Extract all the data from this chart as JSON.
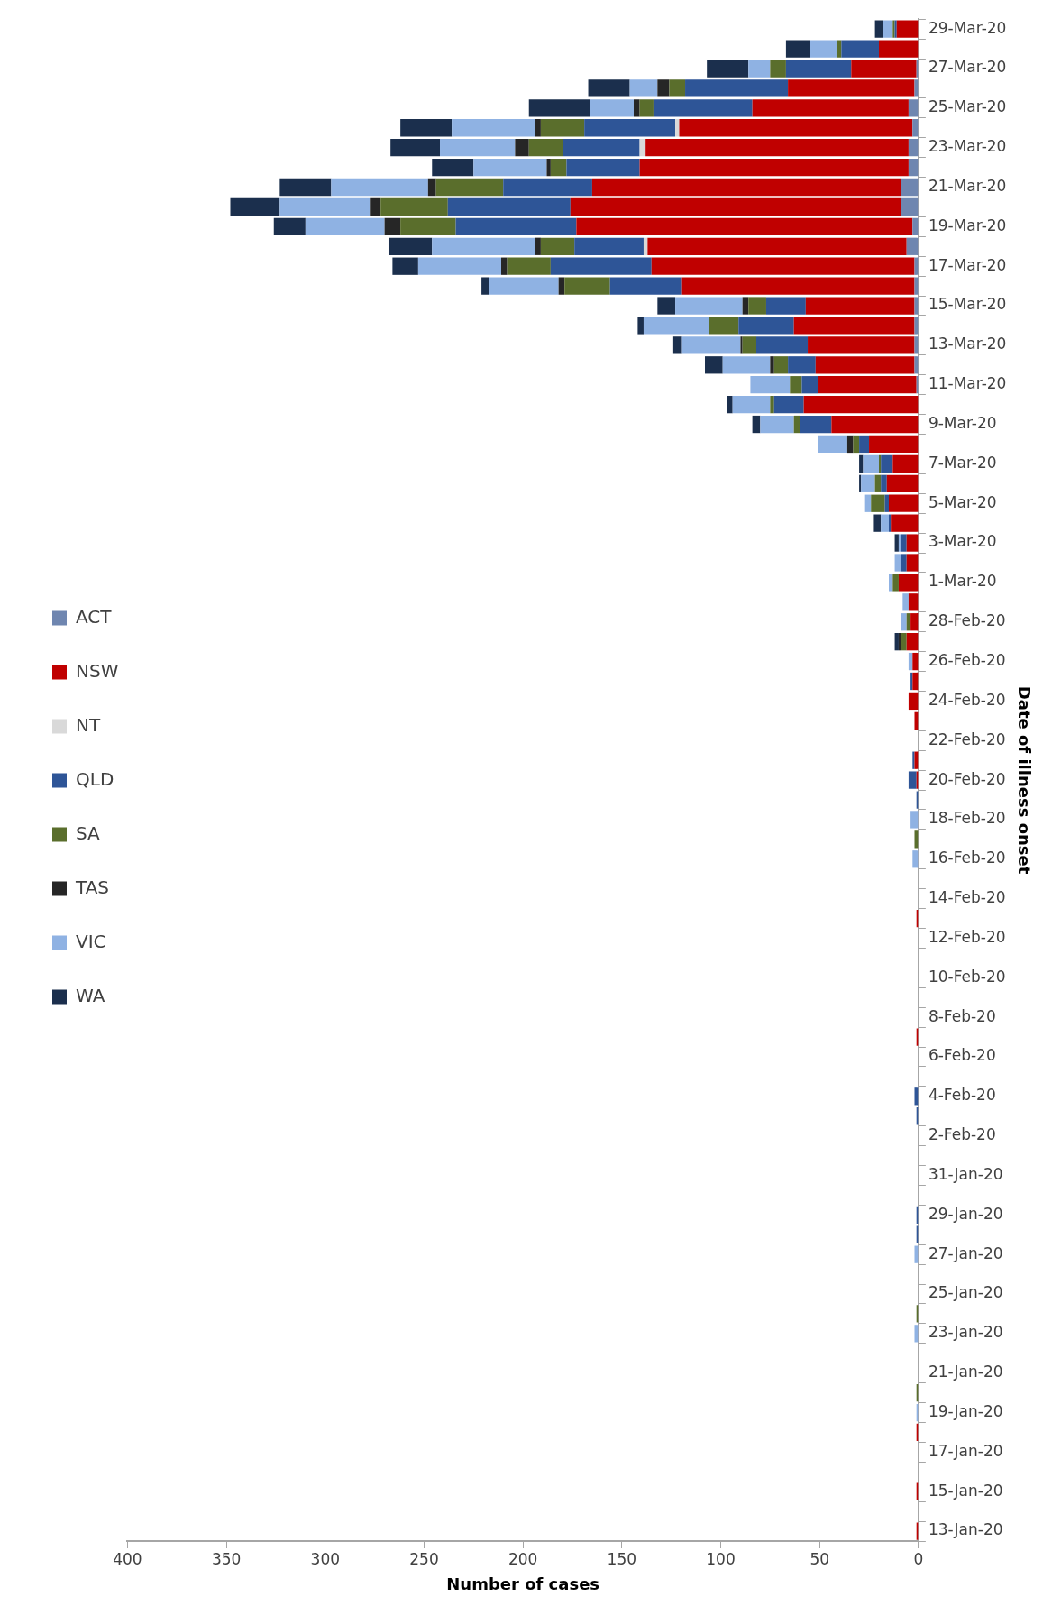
{
  "chart_data": {
    "type": "bar",
    "orientation": "horizontal",
    "stacked": true,
    "xlabel": "Number of cases",
    "ylabel": "Date of illness onset",
    "legend": "left",
    "grid": false,
    "xlim": [
      400,
      0
    ],
    "xticks": [
      0,
      50,
      100,
      150,
      200,
      250,
      300,
      350,
      400
    ],
    "categories": [
      "29-Mar-20",
      null,
      "27-Mar-20",
      null,
      "25-Mar-20",
      null,
      "23-Mar-20",
      null,
      "21-Mar-20",
      null,
      "19-Mar-20",
      null,
      "17-Mar-20",
      null,
      "15-Mar-20",
      null,
      "13-Mar-20",
      null,
      "11-Mar-20",
      null,
      "9-Mar-20",
      null,
      "7-Mar-20",
      null,
      "5-Mar-20",
      null,
      "3-Mar-20",
      null,
      "1-Mar-20",
      null,
      "28-Feb-20",
      null,
      "26-Feb-20",
      null,
      "24-Feb-20",
      null,
      "22-Feb-20",
      null,
      "20-Feb-20",
      null,
      "18-Feb-20",
      null,
      "16-Feb-20",
      null,
      "14-Feb-20",
      null,
      "12-Feb-20",
      null,
      "10-Feb-20",
      null,
      "8-Feb-20",
      null,
      "6-Feb-20",
      null,
      "4-Feb-20",
      null,
      "2-Feb-20",
      null,
      "31-Jan-20",
      null,
      "29-Jan-20",
      null,
      "27-Jan-20",
      null,
      "25-Jan-20",
      null,
      "23-Jan-20",
      null,
      "21-Jan-20",
      null,
      "19-Jan-20",
      null,
      "17-Jan-20",
      null,
      "15-Jan-20",
      null,
      "13-Jan-20"
    ],
    "series": [
      {
        "name": "ACT",
        "color": "#6f86b0",
        "values": [
          0,
          0,
          1,
          2,
          5,
          3,
          5,
          5,
          9,
          9,
          3,
          6,
          2,
          2,
          2,
          2,
          2,
          2,
          1,
          0,
          0,
          0,
          0,
          0,
          0,
          0,
          0,
          0,
          0,
          0,
          0,
          0,
          0,
          0,
          0,
          0,
          0,
          0,
          0,
          0,
          0,
          0,
          0,
          0,
          0,
          0,
          0,
          0,
          0,
          0,
          0,
          0,
          0,
          0,
          0,
          0,
          0,
          0,
          0,
          0,
          0,
          0,
          0,
          0,
          0,
          0,
          0,
          0,
          0,
          0,
          0,
          0,
          0,
          0,
          0,
          0,
          0
        ]
      },
      {
        "name": "NSW",
        "color": "#c00000",
        "values": [
          11,
          20,
          33,
          64,
          79,
          118,
          133,
          136,
          156,
          167,
          170,
          131,
          133,
          118,
          55,
          61,
          54,
          50,
          50,
          58,
          44,
          25,
          13,
          16,
          15,
          14,
          6,
          6,
          10,
          5,
          4,
          6,
          3,
          3,
          5,
          2,
          0,
          2,
          1,
          0,
          0,
          0,
          0,
          0,
          0,
          1,
          0,
          0,
          0,
          0,
          0,
          1,
          0,
          0,
          0,
          0,
          0,
          0,
          0,
          0,
          0,
          0,
          0,
          0,
          0,
          0,
          0,
          0,
          0,
          0,
          0,
          1,
          0,
          0,
          1,
          0,
          1
        ]
      },
      {
        "name": "NT",
        "color": "#d9d9d9",
        "values": [
          0,
          0,
          0,
          0,
          0,
          2,
          3,
          0,
          0,
          0,
          0,
          2,
          0,
          0,
          0,
          0,
          0,
          0,
          0,
          0,
          0,
          0,
          0,
          0,
          0,
          0,
          0,
          0,
          0,
          0,
          0,
          0,
          0,
          0,
          0,
          0,
          0,
          0,
          0,
          0,
          0,
          0,
          0,
          0,
          0,
          0,
          0,
          0,
          0,
          0,
          0,
          0,
          0,
          0,
          0,
          0,
          0,
          0,
          0,
          0,
          0,
          0,
          0,
          0,
          0,
          0,
          0,
          0,
          0,
          0,
          0,
          0,
          0,
          0,
          0,
          0,
          0
        ]
      },
      {
        "name": "QLD",
        "color": "#2e5597",
        "values": [
          1,
          19,
          33,
          52,
          50,
          46,
          39,
          37,
          45,
          62,
          61,
          35,
          51,
          36,
          20,
          28,
          26,
          14,
          8,
          15,
          16,
          5,
          6,
          3,
          2,
          1,
          3,
          3,
          0,
          0,
          0,
          0,
          0,
          1,
          0,
          0,
          0,
          1,
          4,
          1,
          0,
          0,
          0,
          0,
          0,
          0,
          0,
          0,
          0,
          0,
          0,
          0,
          0,
          0,
          2,
          1,
          0,
          0,
          0,
          0,
          1,
          1,
          0,
          0,
          0,
          0,
          0,
          0,
          0,
          0,
          0,
          0,
          0,
          0,
          0,
          0,
          0
        ]
      },
      {
        "name": "SA",
        "color": "#5a6e2c",
        "values": [
          1,
          2,
          8,
          8,
          7,
          22,
          17,
          8,
          34,
          34,
          28,
          17,
          22,
          23,
          9,
          15,
          7,
          7,
          6,
          2,
          3,
          3,
          1,
          3,
          7,
          0,
          0,
          0,
          3,
          0,
          2,
          3,
          0,
          0,
          0,
          0,
          0,
          0,
          0,
          0,
          0,
          2,
          0,
          0,
          0,
          0,
          0,
          0,
          0,
          0,
          0,
          0,
          0,
          0,
          0,
          0,
          0,
          0,
          0,
          0,
          0,
          0,
          0,
          0,
          0,
          1,
          0,
          0,
          0,
          1,
          0,
          0,
          0,
          0,
          0,
          0,
          0
        ]
      },
      {
        "name": "TAS",
        "color": "#262626",
        "values": [
          0,
          0,
          0,
          6,
          3,
          3,
          7,
          2,
          4,
          5,
          8,
          3,
          3,
          3,
          3,
          0,
          1,
          2,
          0,
          0,
          0,
          3,
          0,
          0,
          0,
          0,
          0,
          0,
          0,
          0,
          0,
          1,
          0,
          0,
          0,
          0,
          0,
          0,
          0,
          0,
          0,
          0,
          0,
          0,
          0,
          0,
          0,
          0,
          0,
          0,
          0,
          0,
          0,
          0,
          0,
          0,
          0,
          0,
          0,
          0,
          0,
          0,
          0,
          0,
          0,
          0,
          0,
          0,
          0,
          0,
          0,
          0,
          0,
          0,
          0,
          0,
          0
        ]
      },
      {
        "name": "VIC",
        "color": "#8fb2e3",
        "values": [
          5,
          14,
          11,
          14,
          22,
          42,
          38,
          37,
          49,
          46,
          40,
          52,
          42,
          35,
          34,
          33,
          30,
          24,
          20,
          19,
          17,
          15,
          8,
          7,
          3,
          4,
          1,
          3,
          2,
          3,
          3,
          0,
          2,
          0,
          0,
          0,
          0,
          0,
          0,
          0,
          4,
          0,
          3,
          0,
          0,
          0,
          0,
          0,
          0,
          0,
          0,
          0,
          0,
          0,
          0,
          0,
          0,
          0,
          0,
          0,
          0,
          0,
          2,
          0,
          0,
          0,
          2,
          0,
          0,
          0,
          1,
          0,
          0,
          0,
          0,
          0,
          0
        ]
      },
      {
        "name": "WA",
        "color": "#1b2f4d",
        "values": [
          4,
          12,
          21,
          21,
          31,
          26,
          25,
          21,
          26,
          25,
          16,
          22,
          13,
          4,
          9,
          3,
          4,
          9,
          0,
          3,
          4,
          0,
          2,
          1,
          0,
          4,
          2,
          0,
          0,
          0,
          0,
          2,
          0,
          0,
          0,
          0,
          0,
          0,
          0,
          0,
          0,
          0,
          0,
          0,
          0,
          0,
          0,
          0,
          0,
          0,
          0,
          0,
          0,
          0,
          0,
          0,
          0,
          0,
          0,
          0,
          0,
          0,
          0,
          0,
          0,
          0,
          0,
          0,
          0,
          0,
          0,
          0,
          0,
          0,
          0,
          0,
          0
        ]
      }
    ]
  }
}
